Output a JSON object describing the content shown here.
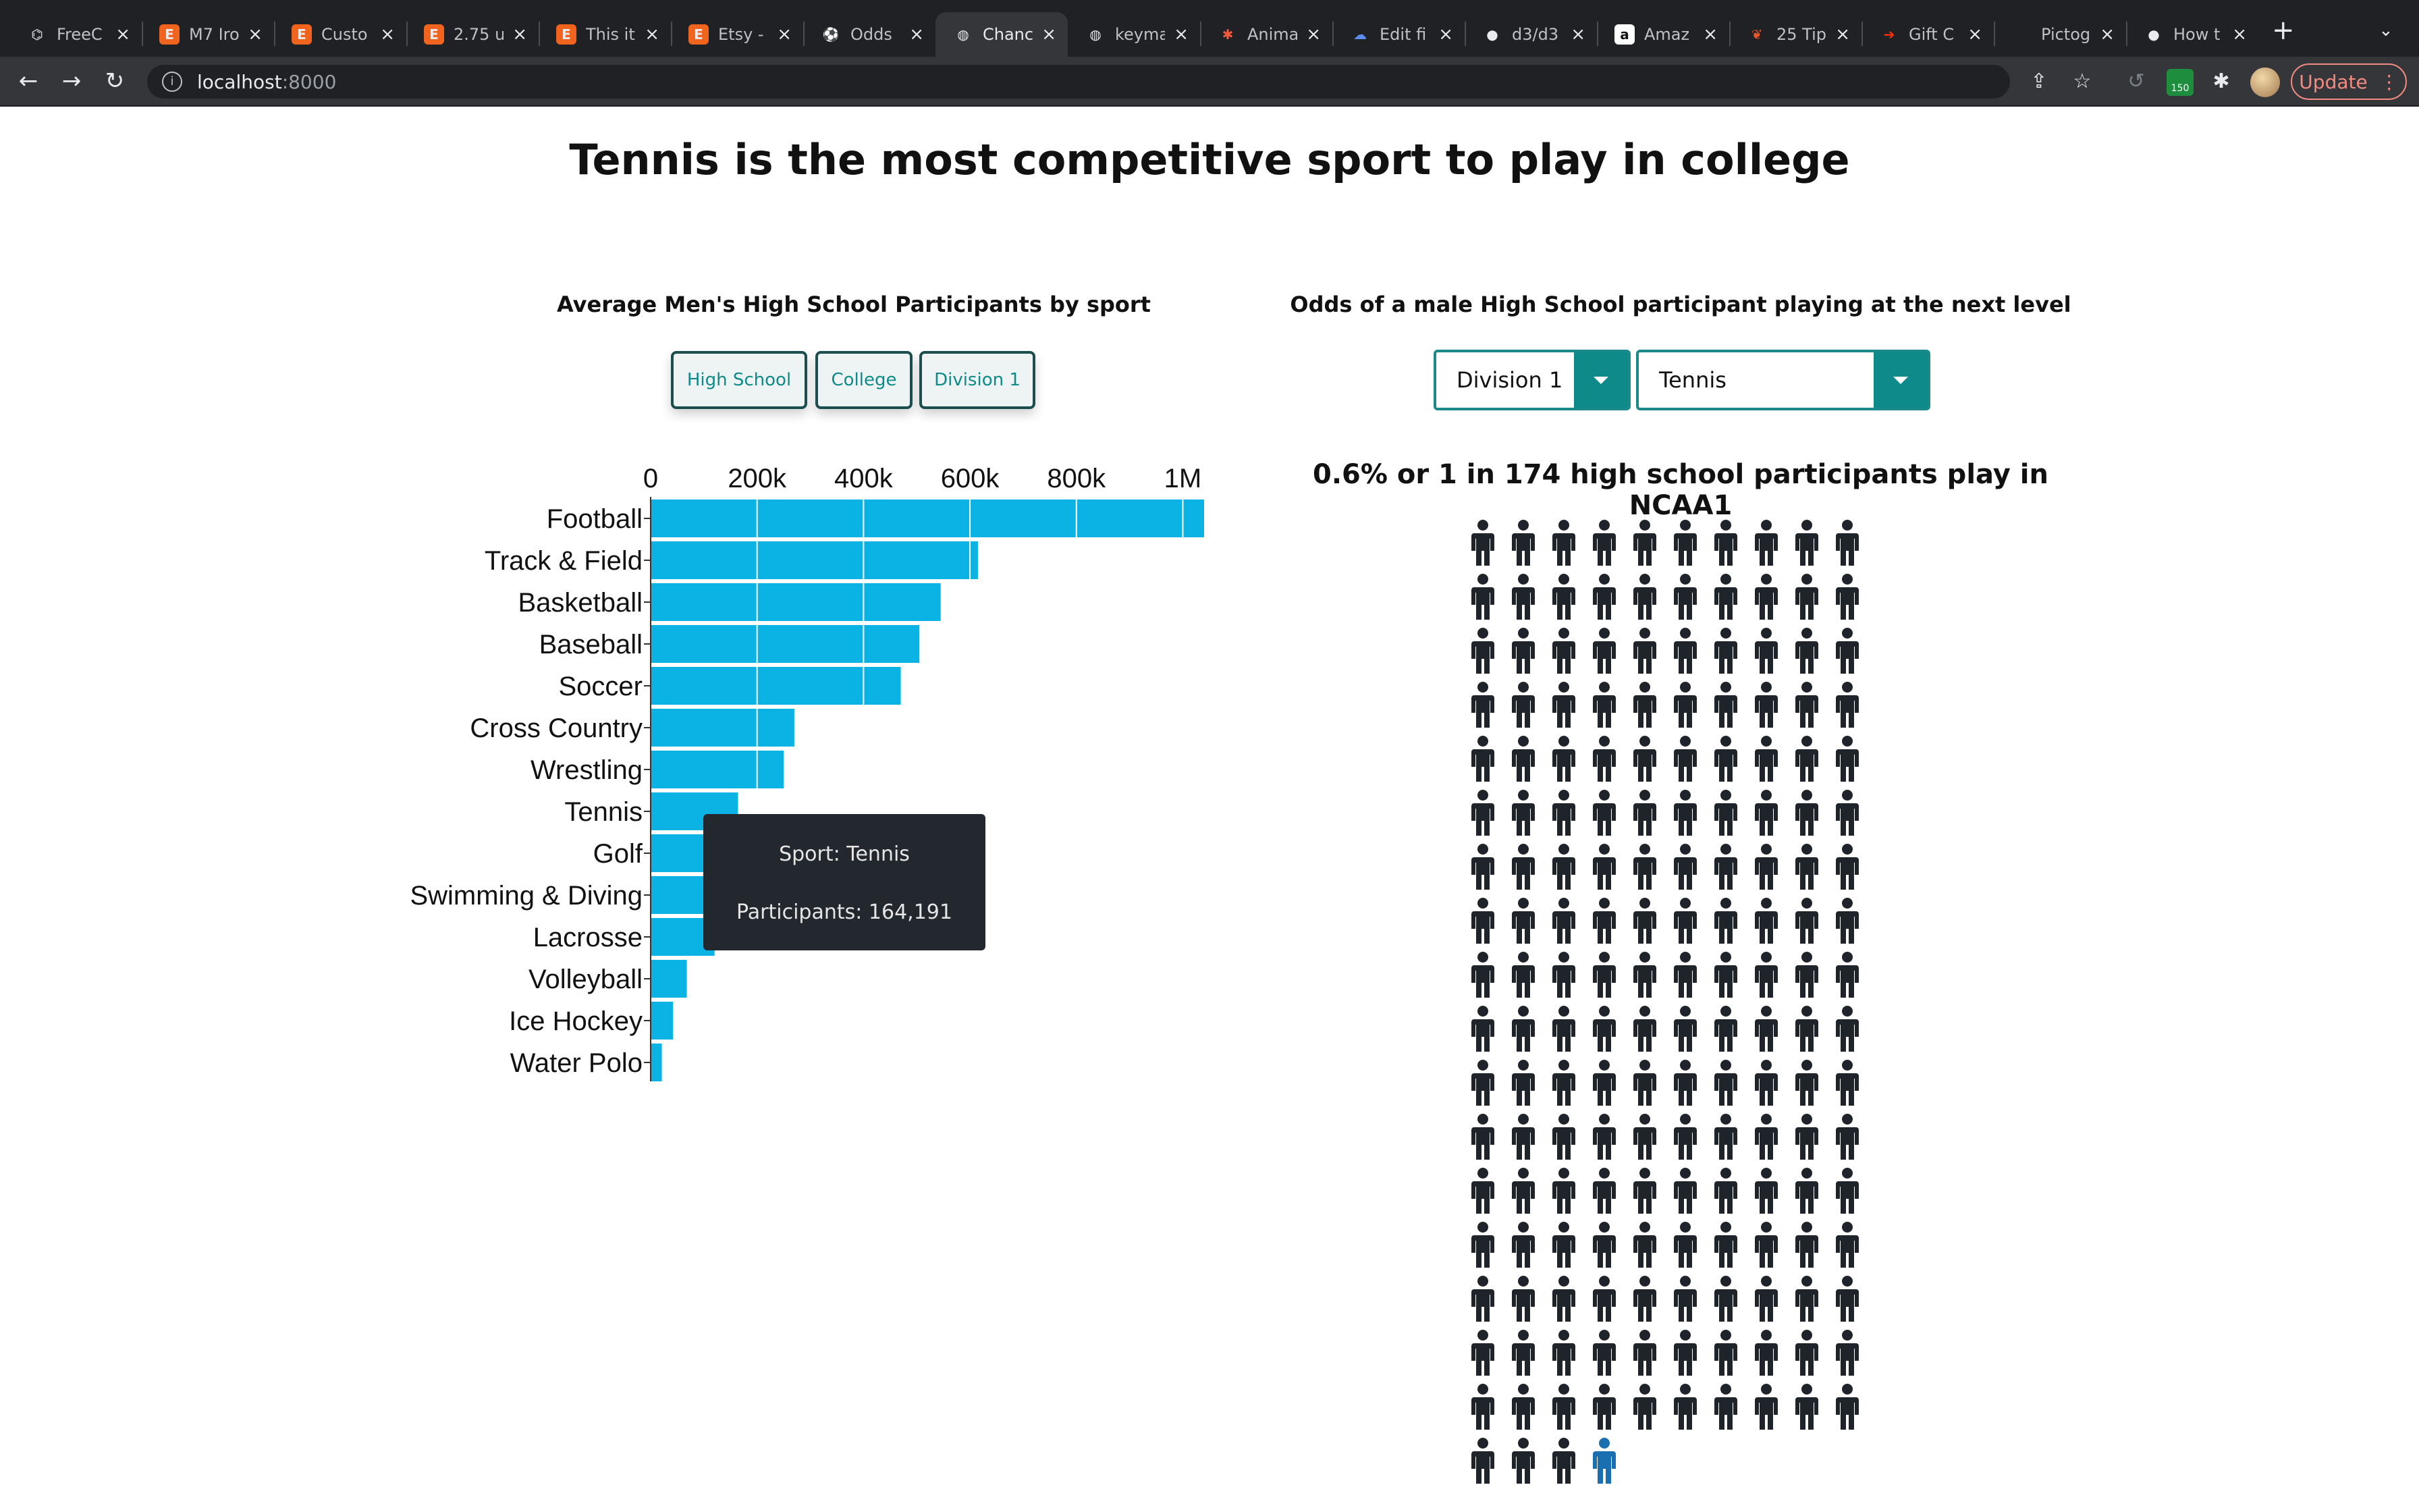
{
  "browser": {
    "tabs": [
      {
        "title": "FreeC",
        "icon": "freecodecamp-icon",
        "color": "#202124",
        "active": false
      },
      {
        "title": "M7 Iro",
        "icon": "etsy-icon",
        "color": "#f1641e",
        "active": false
      },
      {
        "title": "Custo",
        "icon": "etsy-icon",
        "color": "#f1641e",
        "active": false
      },
      {
        "title": "2.75 u",
        "icon": "etsy-icon",
        "color": "#f1641e",
        "active": false
      },
      {
        "title": "This it",
        "icon": "etsy-icon",
        "color": "#f1641e",
        "active": false
      },
      {
        "title": "Etsy -",
        "icon": "etsy-icon",
        "color": "#f1641e",
        "active": false
      },
      {
        "title": "Odds",
        "icon": "soccer-ball-icon",
        "color": "#202124",
        "active": false
      },
      {
        "title": "Chanc",
        "icon": "globe-icon",
        "color": "#35363a",
        "active": true
      },
      {
        "title": "keyma",
        "icon": "globe-icon",
        "color": "#202124",
        "active": false
      },
      {
        "title": "Anima",
        "icon": "asterisk-icon",
        "color": "#202124",
        "active": false
      },
      {
        "title": "Edit fi",
        "icon": "cloud-icon",
        "color": "#202124",
        "active": false
      },
      {
        "title": "d3/d3",
        "icon": "github-icon",
        "color": "#202124",
        "active": false
      },
      {
        "title": "Amaz",
        "icon": "amazon-icon",
        "color": "#202124",
        "active": false
      },
      {
        "title": "25 Tip",
        "icon": "leaf-icon",
        "color": "#202124",
        "active": false
      },
      {
        "title": "Gift C",
        "icon": "doordash-icon",
        "color": "#202124",
        "active": false
      },
      {
        "title": "Pictog",
        "icon": "blank-icon",
        "color": "#202124",
        "active": false
      },
      {
        "title": "How t",
        "icon": "github-icon",
        "color": "#202124",
        "active": false
      }
    ],
    "url_host": "localhost",
    "url_port": ":8000",
    "update_label": "Update",
    "extension_badge": "150"
  },
  "page": {
    "title": "Tennis is the most competitive sport to play in college"
  },
  "bar_panel": {
    "title": "Average Men's High School Participants by sport",
    "buttons": [
      {
        "label": "High School",
        "active": true
      },
      {
        "label": "College",
        "active": false
      },
      {
        "label": "Division 1",
        "active": false
      }
    ],
    "bar_color": "#0bb3e4"
  },
  "chart_data": {
    "type": "bar",
    "orientation": "horizontal",
    "title": "Average Men's High School Participants by sport",
    "categories": [
      "Football",
      "Track & Field",
      "Basketball",
      "Baseball",
      "Soccer",
      "Cross Country",
      "Wrestling",
      "Tennis",
      "Golf",
      "Swimming & Diving",
      "Lacrosse",
      "Volleyball",
      "Ice Hockey",
      "Water Polo"
    ],
    "values": [
      1040000,
      615000,
      545000,
      505000,
      470000,
      270000,
      250000,
      164191,
      145000,
      140000,
      120000,
      68000,
      42000,
      21000
    ],
    "x_ticks": [
      0,
      200000,
      400000,
      600000,
      800000,
      1000000
    ],
    "x_tick_labels": [
      "0",
      "200k",
      "400k",
      "600k",
      "800k",
      "1M"
    ],
    "xlim": [
      0,
      1040000
    ],
    "grid": true
  },
  "tooltip": {
    "sport_line": "Sport: Tennis",
    "participants_line": "Participants: 164,191"
  },
  "odds_panel": {
    "title": "Odds of a male High School participant playing at the next level",
    "level_select": "Division 1",
    "sport_select": "Tennis",
    "headline": "0.6% or 1 in 174 high school participants play in NCAA1",
    "total_icons": 174,
    "highlighted_icons": 1,
    "icon_color": "#1f232a",
    "highlight_color": "#1a6fb0"
  }
}
